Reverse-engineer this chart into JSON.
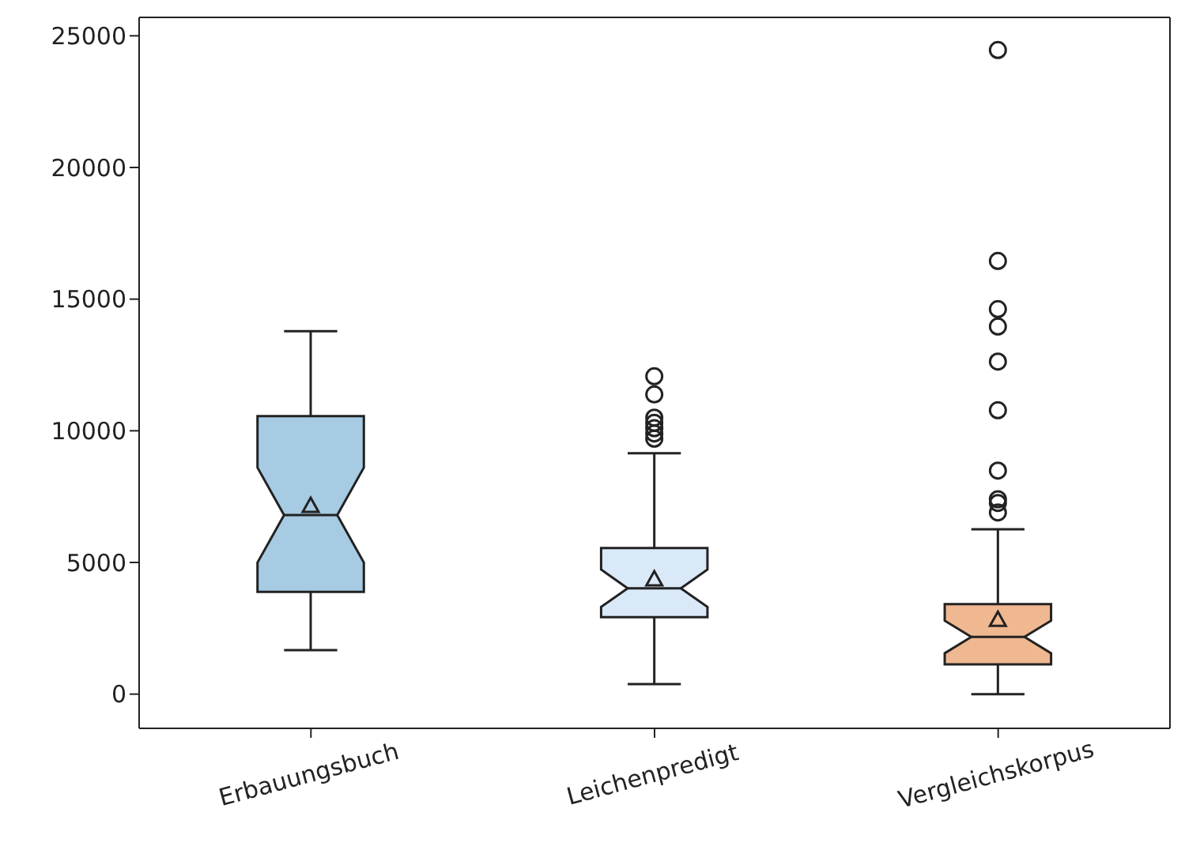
{
  "chart_data": {
    "type": "box",
    "categories": [
      "Erbauungsbuch",
      "Leichenpredigt",
      "Vergleichskorpus"
    ],
    "colors": [
      "#a6cbe3",
      "#d9e9f8",
      "#f0b890"
    ],
    "boxes": [
      {
        "low": 1670,
        "q1": 3880,
        "median": 6800,
        "q3": 10560,
        "high": 13780,
        "mean": 7100
      },
      {
        "low": 380,
        "q1": 2920,
        "median": 4020,
        "q3": 5550,
        "high": 9150,
        "mean": 4310,
        "outliers": [
          12070,
          11380,
          10500,
          10300,
          10100,
          9900,
          9700
        ]
      },
      {
        "low": 0,
        "q1": 1130,
        "median": 2170,
        "q3": 3420,
        "high": 6260,
        "mean": 2770,
        "outliers": [
          24460,
          16450,
          14620,
          13960,
          12630,
          10780,
          8490,
          7400,
          7260,
          6900
        ]
      }
    ],
    "ylim": [
      -1300,
      25700
    ],
    "yticks": [
      0,
      5000,
      10000,
      15000,
      20000,
      25000
    ]
  }
}
